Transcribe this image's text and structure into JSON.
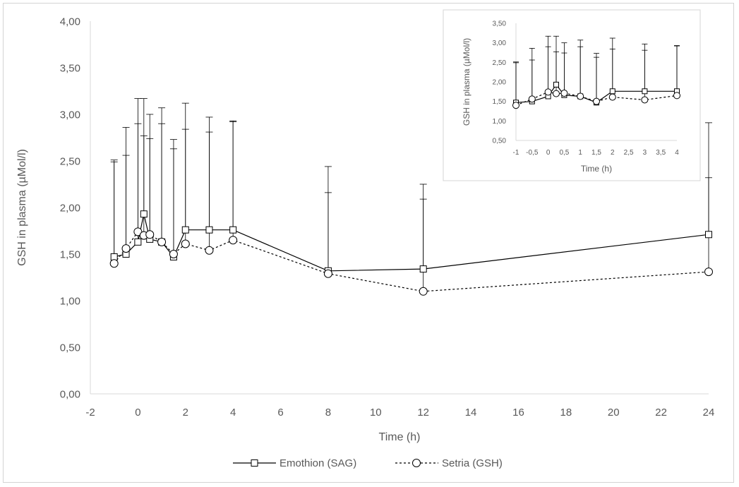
{
  "chart_data": [
    {
      "type": "line",
      "xlabel": "Time (h)",
      "ylabel": "GSH in plasma (µMol/l)",
      "xlim": [
        -2,
        24
      ],
      "ylim": [
        0,
        4
      ],
      "x_ticks": [
        "-2",
        "0",
        "2",
        "4",
        "6",
        "8",
        "10",
        "12",
        "14",
        "16",
        "18",
        "20",
        "22",
        "24"
      ],
      "y_ticks": [
        "0,00",
        "0,50",
        "1,00",
        "1,50",
        "2,00",
        "2,50",
        "3,00",
        "3,50",
        "4,00"
      ],
      "grid": false,
      "legend_position": "bottom",
      "x": [
        -1,
        -0.5,
        0,
        0.25,
        0.5,
        1,
        1.5,
        2,
        3,
        4,
        8,
        12,
        24
      ],
      "series": [
        {
          "name": "Emothion (SAG)",
          "marker": "square",
          "line_style": "solid",
          "values": [
            1.47,
            1.5,
            1.63,
            1.93,
            1.66,
            1.63,
            1.47,
            1.76,
            1.76,
            1.76,
            1.32,
            1.34,
            1.71
          ],
          "error_upper": [
            2.51,
            2.56,
            3.17,
            3.17,
            2.74,
            3.07,
            2.73,
            3.12,
            2.97,
            2.93,
            2.44,
            2.25,
            2.32
          ]
        },
        {
          "name": "Setria (GSH)",
          "marker": "circle",
          "line_style": "dashed",
          "values": [
            1.4,
            1.56,
            1.74,
            1.7,
            1.71,
            1.63,
            1.5,
            1.61,
            1.54,
            1.65,
            1.29,
            1.1,
            1.31
          ],
          "error_upper": [
            2.49,
            2.86,
            2.9,
            2.77,
            3.0,
            2.9,
            2.63,
            2.84,
            2.81,
            2.92,
            2.16,
            2.09,
            2.91
          ]
        }
      ]
    },
    {
      "type": "line",
      "xlabel": "Time (h)",
      "ylabel": "GSH in plasma (µMol/l)",
      "xlim": [
        -1,
        4
      ],
      "ylim": [
        0.5,
        3.5
      ],
      "x_ticks": [
        "-1",
        "-0,5",
        "0",
        "0,5",
        "1",
        "1,5",
        "2",
        "2,5",
        "3",
        "3,5",
        "4"
      ],
      "y_ticks": [
        "0,50",
        "1,00",
        "1,50",
        "2,00",
        "2,50",
        "3,00",
        "3,50"
      ],
      "grid": false,
      "x": [
        -1,
        -0.5,
        0,
        0.25,
        0.5,
        1,
        1.5,
        2,
        3,
        4
      ],
      "series": [
        {
          "name": "Emothion (SAG)",
          "marker": "square",
          "line_style": "solid",
          "values": [
            1.47,
            1.5,
            1.63,
            1.93,
            1.66,
            1.63,
            1.47,
            1.76,
            1.76,
            1.76
          ],
          "error_upper": [
            2.51,
            2.56,
            3.17,
            3.17,
            2.74,
            3.07,
            2.73,
            3.12,
            2.97,
            2.93
          ]
        },
        {
          "name": "Setria (GSH)",
          "marker": "circle",
          "line_style": "dashed",
          "values": [
            1.4,
            1.56,
            1.74,
            1.7,
            1.71,
            1.63,
            1.5,
            1.61,
            1.54,
            1.65
          ],
          "error_upper": [
            2.49,
            2.86,
            2.9,
            2.77,
            3.0,
            2.9,
            2.63,
            2.84,
            2.81,
            2.92
          ]
        }
      ]
    }
  ],
  "colors": {
    "line": "#000000",
    "axis": "#d9d9d9",
    "text": "#595959",
    "border": "#d4d4d4"
  }
}
